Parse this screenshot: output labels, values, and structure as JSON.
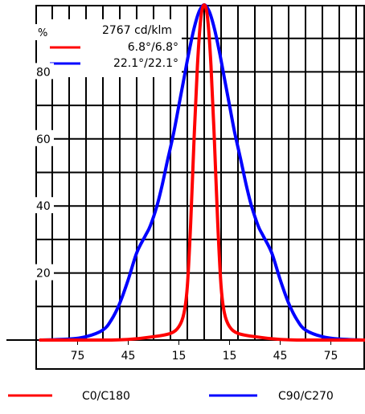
{
  "chart_data": {
    "type": "line",
    "ylabel": "%",
    "x_ticks": [
      {
        "value": -75,
        "label": "75"
      },
      {
        "value": -45,
        "label": "45"
      },
      {
        "value": -15,
        "label": "15"
      },
      {
        "value": 15,
        "label": "15"
      },
      {
        "value": 45,
        "label": "45"
      },
      {
        "value": 75,
        "label": "75"
      }
    ],
    "y_ticks": [
      20,
      40,
      60,
      80
    ],
    "xlim": [
      -97,
      97
    ],
    "ylim": [
      -2,
      97
    ],
    "grid": true,
    "annotation": "2767 cd/klm",
    "legend_box": [
      {
        "label": "6.8°/6.8°",
        "color": "#ff0000"
      },
      {
        "label": "22.1°/22.1°",
        "color": "#0000ff"
      }
    ],
    "legend_bottom": [
      {
        "label": "C0/C180",
        "color": "#ff0000"
      },
      {
        "label": "C90/C270",
        "color": "#0000ff"
      }
    ],
    "series": [
      {
        "name": "C0/C180",
        "color": "#ff0000",
        "x": [
          -97,
          -60,
          -45,
          -30,
          -20,
          -15,
          -12,
          -10,
          -8,
          -6,
          -4,
          -2,
          0,
          2,
          4,
          6,
          8,
          10,
          12,
          15,
          20,
          30,
          45,
          60,
          97
        ],
        "y": [
          0,
          0,
          0.2,
          1,
          2,
          4,
          8,
          16,
          35,
          60,
          82,
          96,
          100,
          96,
          82,
          60,
          35,
          16,
          8,
          4,
          2,
          1,
          0.2,
          0,
          0
        ]
      },
      {
        "name": "C90/C270",
        "color": "#0000ff",
        "x": [
          -97,
          -80,
          -70,
          -60,
          -55,
          -50,
          -45,
          -40,
          -35,
          -32,
          -28,
          -25,
          -22,
          -18,
          -15,
          -12,
          -9,
          -6,
          -3,
          0,
          3,
          6,
          9,
          12,
          15,
          18,
          22,
          25,
          28,
          32,
          35,
          40,
          45,
          50,
          55,
          60,
          70,
          80,
          97
        ],
        "y": [
          0,
          0.3,
          1,
          3,
          6,
          11,
          18,
          26,
          31,
          34,
          40,
          46,
          53,
          62,
          70,
          78,
          86,
          93,
          98,
          100,
          98,
          93,
          86,
          78,
          70,
          62,
          53,
          46,
          40,
          34,
          31,
          26,
          18,
          11,
          6,
          3,
          1,
          0.3,
          0
        ]
      }
    ]
  }
}
